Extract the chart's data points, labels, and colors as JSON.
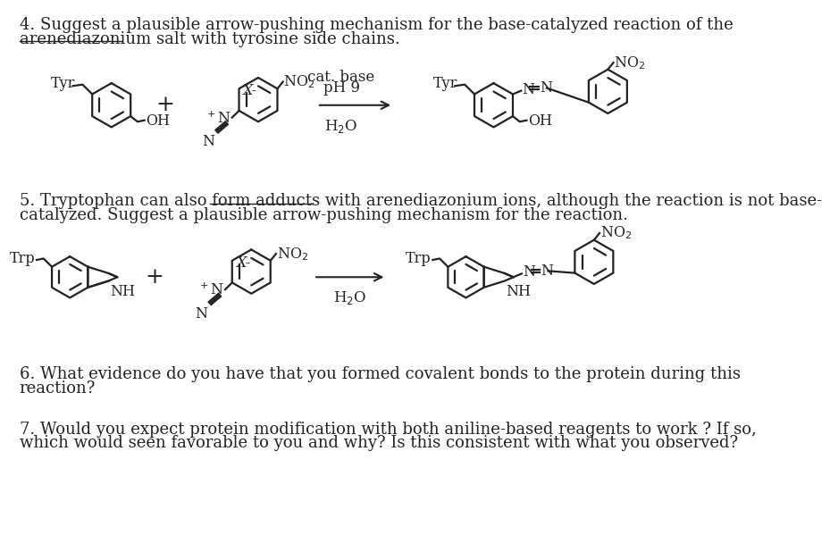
{
  "bg_color": "#ffffff",
  "text_color": "#222222",
  "fs_text": 13.0,
  "fs_chem": 11.5,
  "fs_sub": 9.0,
  "line_q4a": "4. Suggest a plausible arrow-pushing mechanism for the base-catalyzed reaction of the",
  "line_q4b": "arenediazonium salt with tyrosine side chains.",
  "line_q5a": "5. Tryptophan can also form adducts with arenediazonium ions, although the reaction is not base-",
  "line_q5b": "catalyzed. Suggest a plausible arrow-pushing mechanism for the reaction.",
  "line_q6a": "6. What evidence do you have that you formed covalent bonds to the protein during this",
  "line_q6b": "reaction?",
  "line_q7a": "7. Would you expect protein modification with both aniline-based reagents to work ? If so,",
  "line_q7b": "which would seen favorable to you and why? Is this consistent with what you observed?"
}
